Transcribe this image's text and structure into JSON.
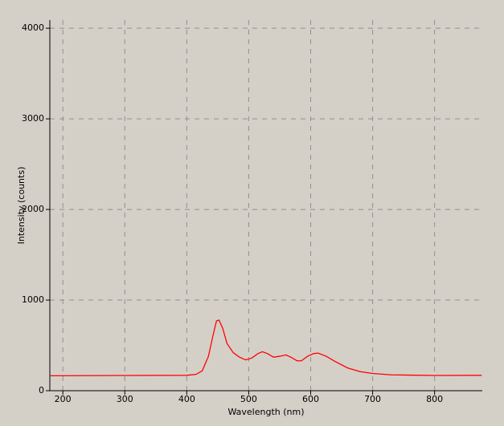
{
  "chart_data": {
    "type": "line",
    "x_label": "Wavelength (nm)",
    "y_label": "Intensity (counts)",
    "xlim": [
      179,
      877
    ],
    "xticks": [
      200,
      300,
      400,
      500,
      600,
      700,
      800
    ],
    "ylim": [
      0,
      4090
    ],
    "yticks": [
      0,
      1000,
      2000,
      3000,
      4000
    ],
    "grid": true,
    "x": [
      180,
      300,
      400,
      415,
      425,
      435,
      442,
      448,
      452,
      458,
      465,
      475,
      485,
      495,
      505,
      515,
      522,
      530,
      540,
      550,
      560,
      568,
      578,
      585,
      595,
      605,
      612,
      625,
      640,
      660,
      680,
      700,
      730,
      800,
      876
    ],
    "series": [
      {
        "color": "#ff0000",
        "values": [
          165,
          168,
          170,
          180,
          220,
          380,
          600,
          770,
          780,
          690,
          520,
          420,
          370,
          340,
          360,
          410,
          430,
          410,
          370,
          380,
          395,
          370,
          330,
          330,
          380,
          410,
          415,
          380,
          320,
          250,
          210,
          190,
          175,
          168,
          170
        ]
      }
    ]
  }
}
